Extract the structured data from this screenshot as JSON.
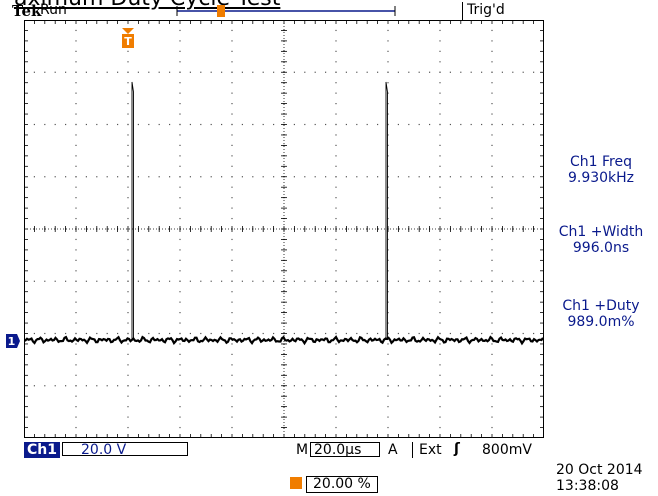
{
  "title": "aximum Duty Cycle Test",
  "header": {
    "brand": "Tek",
    "run_state": "Run",
    "trigger_status": "Trig'd"
  },
  "measurements": [
    {
      "label": "Ch1 Freq",
      "value": "9.930kHz"
    },
    {
      "label": "Ch1 +Width",
      "value": "996.0ns"
    },
    {
      "label": "Ch1 +Duty",
      "value": "989.0m%"
    }
  ],
  "channel": {
    "marker": "1",
    "name": "Ch1",
    "scale": "20.0 V"
  },
  "horizontal": {
    "prefix": "M",
    "timebase": "20.0µs"
  },
  "trigger": {
    "mode_label": "A",
    "source": "Ext",
    "slope_symbol": "ʃ",
    "level": "800mV",
    "position": "20.00 %"
  },
  "timestamp": {
    "date": "20 Oct  2014",
    "time": "13:38:08"
  },
  "colors": {
    "channel1": "#0a1a8c",
    "trigger": "#f07d00",
    "trace": "#000000"
  }
}
